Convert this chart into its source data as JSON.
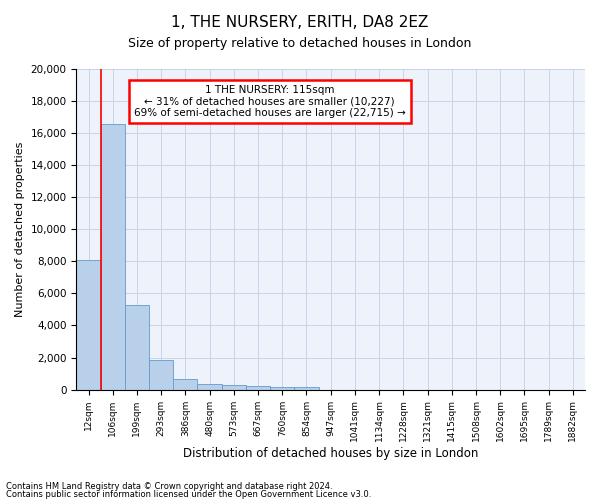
{
  "title": "1, THE NURSERY, ERITH, DA8 2EZ",
  "subtitle": "Size of property relative to detached houses in London",
  "xlabel": "Distribution of detached houses by size in London",
  "ylabel": "Number of detached properties",
  "bar_color": "#b8d0ea",
  "bar_edge_color": "#6699cc",
  "categories": [
    "12sqm",
    "106sqm",
    "199sqm",
    "293sqm",
    "386sqm",
    "480sqm",
    "573sqm",
    "667sqm",
    "760sqm",
    "854sqm",
    "947sqm",
    "1041sqm",
    "1134sqm",
    "1228sqm",
    "1321sqm",
    "1415sqm",
    "1508sqm",
    "1602sqm",
    "1695sqm",
    "1789sqm",
    "1882sqm"
  ],
  "values": [
    8100,
    16600,
    5300,
    1850,
    650,
    350,
    280,
    210,
    190,
    160,
    0,
    0,
    0,
    0,
    0,
    0,
    0,
    0,
    0,
    0,
    0
  ],
  "ylim": [
    0,
    20000
  ],
  "yticks": [
    0,
    2000,
    4000,
    6000,
    8000,
    10000,
    12000,
    14000,
    16000,
    18000,
    20000
  ],
  "annotation_line1": "1 THE NURSERY: 115sqm",
  "annotation_line2": "← 31% of detached houses are smaller (10,227)",
  "annotation_line3": "69% of semi-detached houses are larger (22,715) →",
  "annotation_box_color": "white",
  "annotation_box_edge": "red",
  "vline_color": "red",
  "vline_x": 0.5,
  "footer1": "Contains HM Land Registry data © Crown copyright and database right 2024.",
  "footer2": "Contains public sector information licensed under the Open Government Licence v3.0.",
  "bg_color": "#edf2fb",
  "grid_color": "#c8d4e8"
}
